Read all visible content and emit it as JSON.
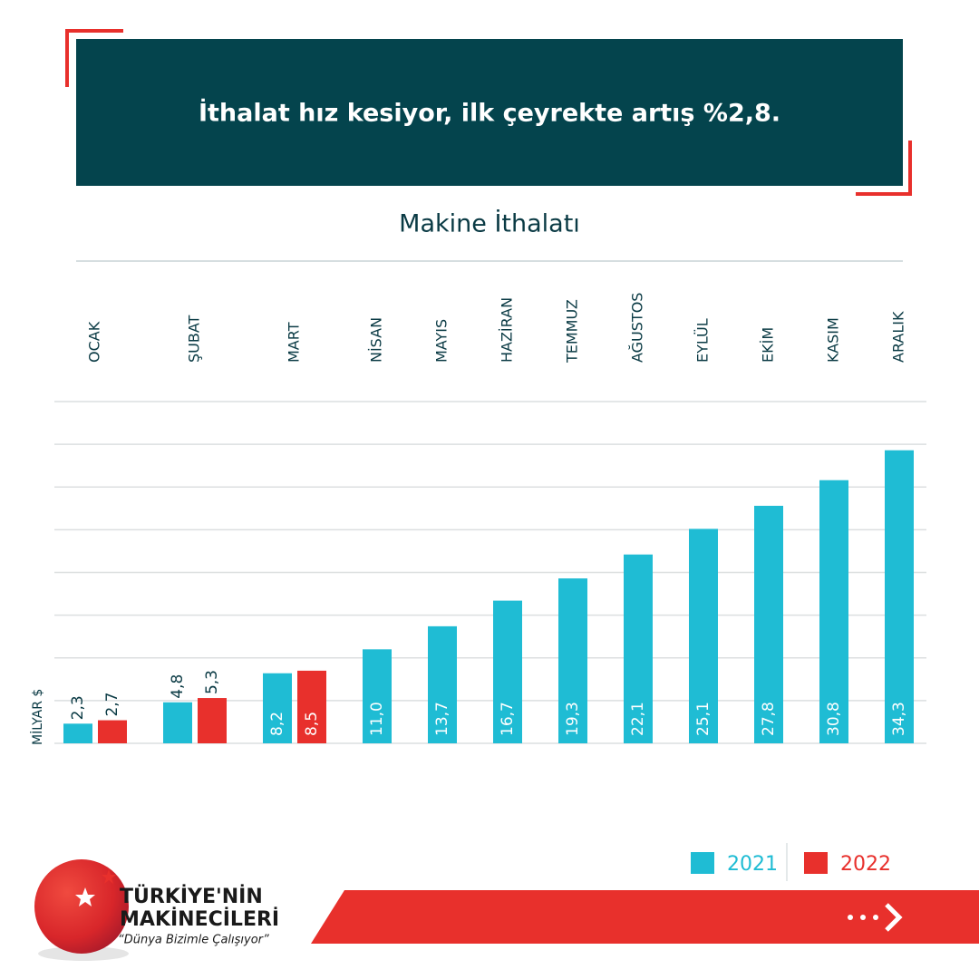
{
  "header": {
    "title": "İthalat hız kesiyor, ilk çeyrekte artış %2,8."
  },
  "chart_data": {
    "type": "bar",
    "title": "Makine İthalatı",
    "y_label": "MİLYAR $",
    "categories": [
      "OCAK",
      "ŞUBAT",
      "MART",
      "NİSAN",
      "MAYIS",
      "HAZİRAN",
      "TEMMUZ",
      "AĞUSTOS",
      "EYLÜL",
      "EKİM",
      "KASIM",
      "ARALIK"
    ],
    "series": [
      {
        "name": "2021",
        "color": "#1fbcd4",
        "values": [
          2.3,
          4.8,
          8.2,
          11.0,
          13.7,
          16.7,
          19.3,
          22.1,
          25.1,
          27.8,
          30.8,
          34.3
        ],
        "value_labels": [
          "2,3",
          "4,8",
          "8,2",
          "11,0",
          "13,7",
          "16,7",
          "19,3",
          "22,1",
          "25,1",
          "27,8",
          "30,8",
          "34,3"
        ]
      },
      {
        "name": "2022",
        "color": "#e8302c",
        "values": [
          2.7,
          5.3,
          8.5,
          null,
          null,
          null,
          null,
          null,
          null,
          null,
          null,
          null
        ],
        "value_labels": [
          "2,7",
          "5,3",
          "8,5",
          null,
          null,
          null,
          null,
          null,
          null,
          null,
          null,
          null
        ]
      }
    ],
    "ylim": [
      0,
      40
    ],
    "yticks": [
      0,
      5,
      10,
      15,
      20,
      25,
      30,
      35,
      40
    ],
    "grid": true,
    "legend": "bottom-right"
  },
  "branding": {
    "line1": "TÜRKİYE'NİN",
    "line2": "MAKİNECİLERİ",
    "slogan": "“Dünya Bizimle Çalışıyor”"
  }
}
